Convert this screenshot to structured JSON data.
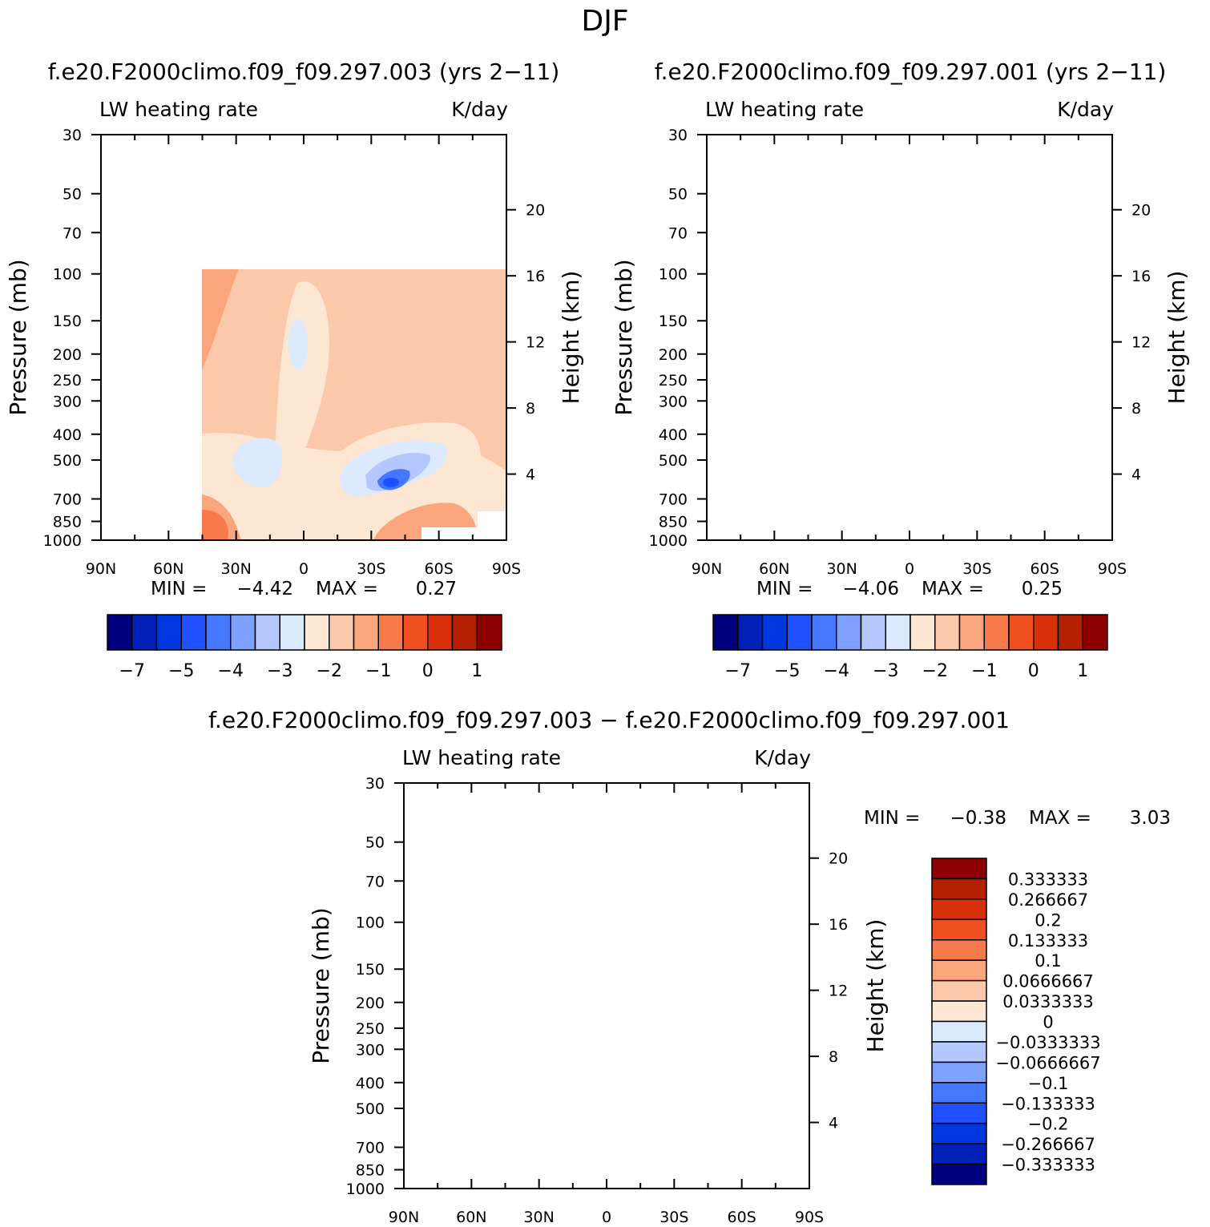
{
  "figure": {
    "title": "DJF",
    "colors": {
      "abs_scale": [
        "#00007f",
        "#0020b8",
        "#0038e0",
        "#1e50ff",
        "#4678ff",
        "#7ea0ff",
        "#b4c8ff",
        "#dceaff",
        "#fde6d2",
        "#fcc8aa",
        "#fba57c",
        "#f77a4a",
        "#f05020",
        "#d83008",
        "#b42000",
        "#8c0000"
      ],
      "diff_scale": [
        "#00007f",
        "#0020b8",
        "#0038e0",
        "#1e50ff",
        "#4678ff",
        "#7ea0ff",
        "#b4c8ff",
        "#dceaff",
        "#fde6d2",
        "#fcc8aa",
        "#fba57c",
        "#f77a4a",
        "#f05020",
        "#d83008",
        "#b42000",
        "#8c0000"
      ]
    }
  },
  "chart_data": [
    {
      "type": "contour",
      "case": "f.e20.F2000climo.f09_f09.297.003 (yrs 2−11)",
      "variable": "LW heating rate",
      "units": "K/day",
      "ylabel": "Pressure (mb)",
      "y2label": "Height (km)",
      "xticks": [
        "90N",
        "60N",
        "30N",
        "0",
        "30S",
        "60S",
        "90S"
      ],
      "x_values": [
        90,
        60,
        30,
        0,
        -30,
        -60,
        -90
      ],
      "pressure_ticks": [
        30,
        50,
        70,
        100,
        150,
        200,
        250,
        300,
        400,
        500,
        700,
        850,
        1000
      ],
      "pressure_labels": [
        "30",
        "50",
        "70",
        "100",
        "150",
        "200",
        "250",
        "300",
        "400",
        "500",
        "700",
        "850",
        "1000"
      ],
      "height_ticks": [
        20,
        16,
        12,
        8,
        4
      ],
      "height_labels": [
        "20",
        "16",
        "12",
        "8",
        "4"
      ],
      "min_label": "MIN =",
      "min": "−4.42",
      "max_label": "MAX =",
      "max": "0.27",
      "colorbar_labels": [
        "−7",
        "−5",
        "−4",
        "−3",
        "−2",
        "−1",
        "0",
        "1"
      ]
    },
    {
      "type": "contour",
      "case": "f.e20.F2000climo.f09_f09.297.001 (yrs 2−11)",
      "variable": "LW heating rate",
      "units": "K/day",
      "ylabel": "Pressure (mb)",
      "y2label": "Height (km)",
      "xticks": [
        "90N",
        "60N",
        "30N",
        "0",
        "30S",
        "60S",
        "90S"
      ],
      "x_values": [
        90,
        60,
        30,
        0,
        -30,
        -60,
        -90
      ],
      "pressure_ticks": [
        30,
        50,
        70,
        100,
        150,
        200,
        250,
        300,
        400,
        500,
        700,
        850,
        1000
      ],
      "pressure_labels": [
        "30",
        "50",
        "70",
        "100",
        "150",
        "200",
        "250",
        "300",
        "400",
        "500",
        "700",
        "850",
        "1000"
      ],
      "height_ticks": [
        20,
        16,
        12,
        8,
        4
      ],
      "height_labels": [
        "20",
        "16",
        "12",
        "8",
        "4"
      ],
      "min_label": "MIN =",
      "min": "−4.06",
      "max_label": "MAX =",
      "max": "0.25",
      "colorbar_labels": [
        "−7",
        "−5",
        "−4",
        "−3",
        "−2",
        "−1",
        "0",
        "1"
      ]
    },
    {
      "type": "contour",
      "case": "f.e20.F2000climo.f09_f09.297.003 − f.e20.F2000climo.f09_f09.297.001",
      "variable": "LW heating rate",
      "units": "K/day",
      "ylabel": "Pressure (mb)",
      "y2label": "Height (km)",
      "xticks": [
        "90N",
        "60N",
        "30N",
        "0",
        "30S",
        "60S",
        "90S"
      ],
      "x_values": [
        90,
        60,
        30,
        0,
        -30,
        -60,
        -90
      ],
      "pressure_ticks": [
        30,
        50,
        70,
        100,
        150,
        200,
        250,
        300,
        400,
        500,
        700,
        850,
        1000
      ],
      "pressure_labels": [
        "30",
        "50",
        "70",
        "100",
        "150",
        "200",
        "250",
        "300",
        "400",
        "500",
        "700",
        "850",
        "1000"
      ],
      "height_ticks": [
        20,
        16,
        12,
        8,
        4
      ],
      "height_labels": [
        "20",
        "16",
        "12",
        "8",
        "4"
      ],
      "min_label": "MIN =",
      "min": "−0.38",
      "max_label": "MAX =",
      "max": "3.03",
      "colorbar_labels": [
        "0.333333",
        "0.266667",
        "0.2",
        "0.133333",
        "0.1",
        "0.0666667",
        "0.0333333",
        "0",
        "−0.0333333",
        "−0.0666667",
        "−0.1",
        "−0.133333",
        "−0.2",
        "−0.266667",
        "−0.333333"
      ]
    }
  ]
}
